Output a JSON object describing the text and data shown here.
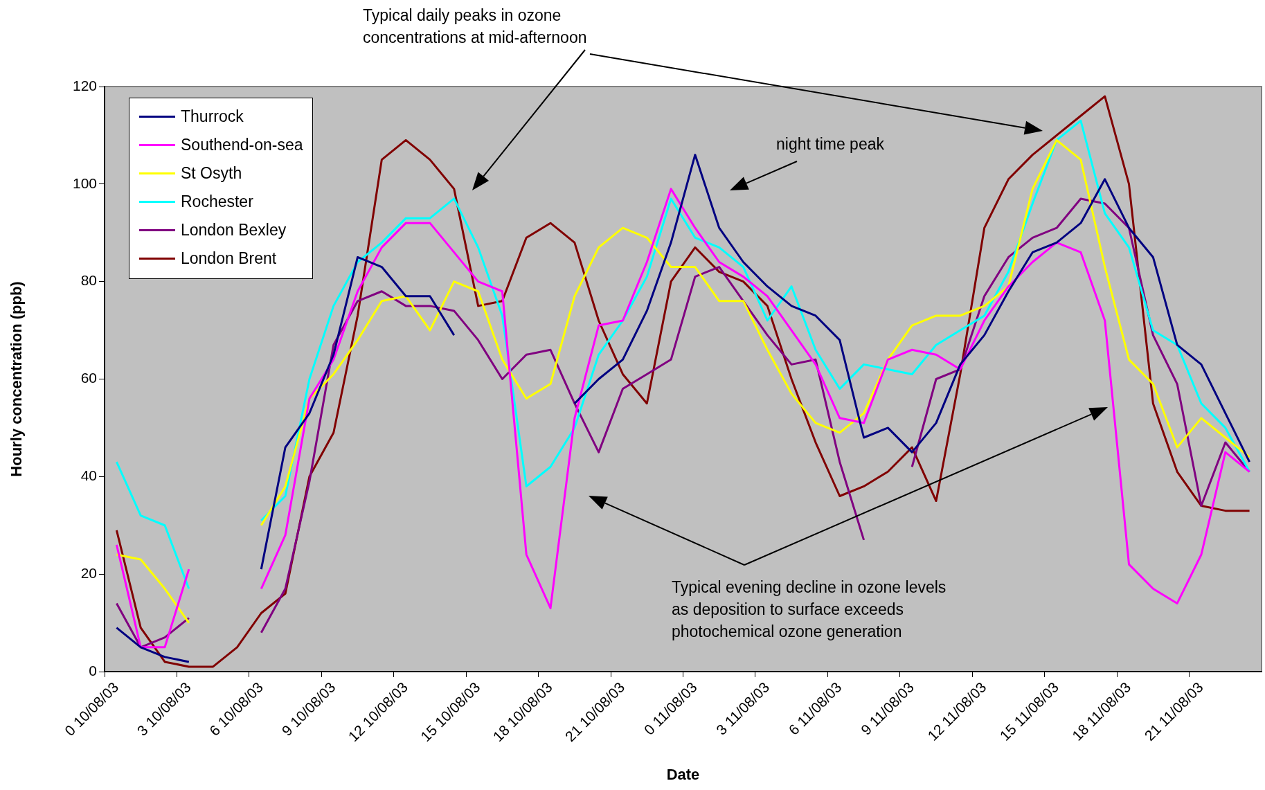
{
  "chart_data": {
    "type": "line",
    "xlabel": "Date",
    "ylabel": "Hourly concentration (ppb)",
    "annotations": [
      "Typical daily peaks in ozone\nconcentrations at mid-afternoon",
      "night time peak",
      "Typical evening decline in ozone levels\nas deposition to surface exceeds\nphotochemical ozone generation"
    ],
    "categories": [
      "0 10/08/03",
      null,
      null,
      "3 10/08/03",
      null,
      null,
      "6 10/08/03",
      null,
      null,
      "9 10/08/03",
      null,
      null,
      "12 10/08/03",
      null,
      null,
      "15 10/08/03",
      null,
      null,
      "18 10/08/03",
      null,
      null,
      "21 10/08/03",
      null,
      null,
      "0 11/08/03",
      null,
      null,
      "3 11/08/03",
      null,
      null,
      "6 11/08/03",
      null,
      null,
      "9 11/08/03",
      null,
      null,
      "12 11/08/03",
      null,
      null,
      "15 11/08/03",
      null,
      null,
      "18 11/08/03",
      null,
      null,
      "21 11/08/03",
      null,
      null
    ],
    "series": [
      {
        "name": "Thurrock",
        "color": "#000080",
        "values": [
          9,
          5,
          3,
          2,
          null,
          null,
          21,
          46,
          53,
          65,
          85,
          83,
          77,
          77,
          69,
          null,
          null,
          null,
          null,
          55,
          60,
          64,
          74,
          88,
          106,
          91,
          84,
          79,
          75,
          73,
          68,
          48,
          50,
          45,
          51,
          63,
          69,
          78,
          86,
          88,
          92,
          101,
          91,
          85,
          67,
          63,
          53,
          43
        ]
      },
      {
        "name": "Southend-on-sea",
        "color": "#ff00ff",
        "values": [
          26,
          5,
          5,
          21,
          null,
          null,
          17,
          28,
          56,
          64,
          78,
          87,
          92,
          92,
          86,
          80,
          78,
          24,
          13,
          52,
          71,
          72,
          84,
          99,
          91,
          84,
          81,
          77,
          70,
          63,
          52,
          51,
          64,
          66,
          65,
          62,
          72,
          79,
          84,
          88,
          86,
          72,
          22,
          17,
          14,
          24,
          45,
          41
        ]
      },
      {
        "name": "St Osyth",
        "color": "#ffff00",
        "values": [
          24,
          23,
          17,
          10,
          null,
          null,
          30,
          38,
          56,
          61,
          68,
          76,
          77,
          70,
          80,
          78,
          64,
          56,
          59,
          77,
          87,
          91,
          89,
          83,
          83,
          76,
          76,
          66,
          57,
          51,
          49,
          53,
          64,
          71,
          73,
          73,
          75,
          79,
          99,
          109,
          105,
          83,
          64,
          59,
          46,
          52,
          48,
          44
        ]
      },
      {
        "name": "Rochester",
        "color": "#00ffff",
        "values": [
          43,
          32,
          30,
          17,
          null,
          null,
          31,
          36,
          60,
          75,
          84,
          88,
          93,
          93,
          97,
          87,
          73,
          38,
          42,
          50,
          65,
          72,
          81,
          97,
          89,
          87,
          83,
          72,
          79,
          66,
          58,
          63,
          62,
          61,
          67,
          70,
          73,
          82,
          96,
          109,
          113,
          94,
          87,
          70,
          67,
          55,
          50,
          41
        ]
      },
      {
        "name": "London Bexley",
        "color": "#800080",
        "values": [
          14,
          5,
          7,
          11,
          null,
          null,
          8,
          17,
          39,
          67,
          76,
          78,
          75,
          75,
          74,
          68,
          60,
          65,
          66,
          55,
          45,
          58,
          61,
          64,
          81,
          83,
          76,
          69,
          63,
          64,
          43,
          27,
          null,
          42,
          60,
          62,
          77,
          85,
          89,
          91,
          97,
          96,
          91,
          69,
          59,
          34,
          47,
          41
        ]
      },
      {
        "name": "London Brent",
        "color": "#800000",
        "values": [
          29,
          9,
          2,
          1,
          1,
          5,
          12,
          16,
          40,
          49,
          73,
          105,
          109,
          105,
          99,
          75,
          76,
          89,
          92,
          88,
          72,
          61,
          55,
          80,
          87,
          82,
          80,
          75,
          60,
          47,
          36,
          38,
          41,
          46,
          35,
          61,
          91,
          101,
          106,
          110,
          114,
          118,
          100,
          55,
          41,
          34,
          33,
          33
        ]
      }
    ],
    "ylim": [
      0,
      120
    ],
    "yticks": [
      0,
      20,
      40,
      60,
      80,
      100,
      120
    ],
    "legend": "top left",
    "marker": "none"
  }
}
